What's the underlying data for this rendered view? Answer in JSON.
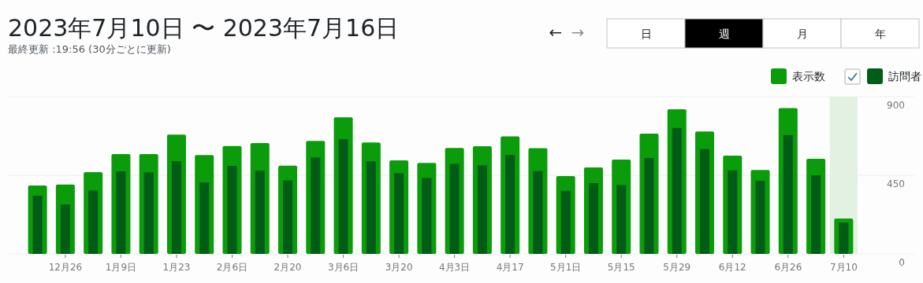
{
  "chart_data": {
    "type": "bar",
    "title": "2023年7月10日 〜 2023年7月16日",
    "subtitle": "最終更新 :19:56 (30分ごとに更新)",
    "annotations": [
      "←",
      "→",
      "日",
      "週",
      "月",
      "年"
    ],
    "categories": [
      null,
      "12月26",
      null,
      "1月9日",
      null,
      "1月23",
      null,
      "2月6日",
      null,
      "2月20",
      null,
      "3月6日",
      null,
      "3月20",
      null,
      "4月3日",
      null,
      "4月17",
      null,
      "5月1日",
      null,
      "5月15",
      null,
      "5月29",
      null,
      "6月12",
      null,
      "6月26",
      null,
      "7月10"
    ],
    "series": [
      {
        "name": "表示数",
        "color": "#0a9c0a",
        "values": [
          391,
          397,
          468,
          572,
          572,
          683,
          566,
          618,
          635,
          505,
          647,
          782,
          638,
          536,
          521,
          606,
          617,
          673,
          605,
          445,
          495,
          540,
          689,
          828,
          701,
          563,
          480,
          835,
          545,
          203
        ]
      },
      {
        "name": "訪問者",
        "color": "#025c18",
        "values": [
          333,
          283,
          363,
          472,
          467,
          530,
          409,
          504,
          476,
          421,
          552,
          657,
          530,
          462,
          435,
          516,
          507,
          566,
          474,
          361,
          405,
          394,
          549,
          721,
          600,
          478,
          418,
          680,
          450,
          179
        ]
      }
    ],
    "ylim": [
      0,
      900
    ],
    "yticks": [
      0,
      450,
      900
    ],
    "grid": "y",
    "legend": "top right",
    "bands": [
      {
        "axis": "x",
        "from": "7月10",
        "to": "7月10",
        "color": "#e2f1e2"
      }
    ]
  }
}
